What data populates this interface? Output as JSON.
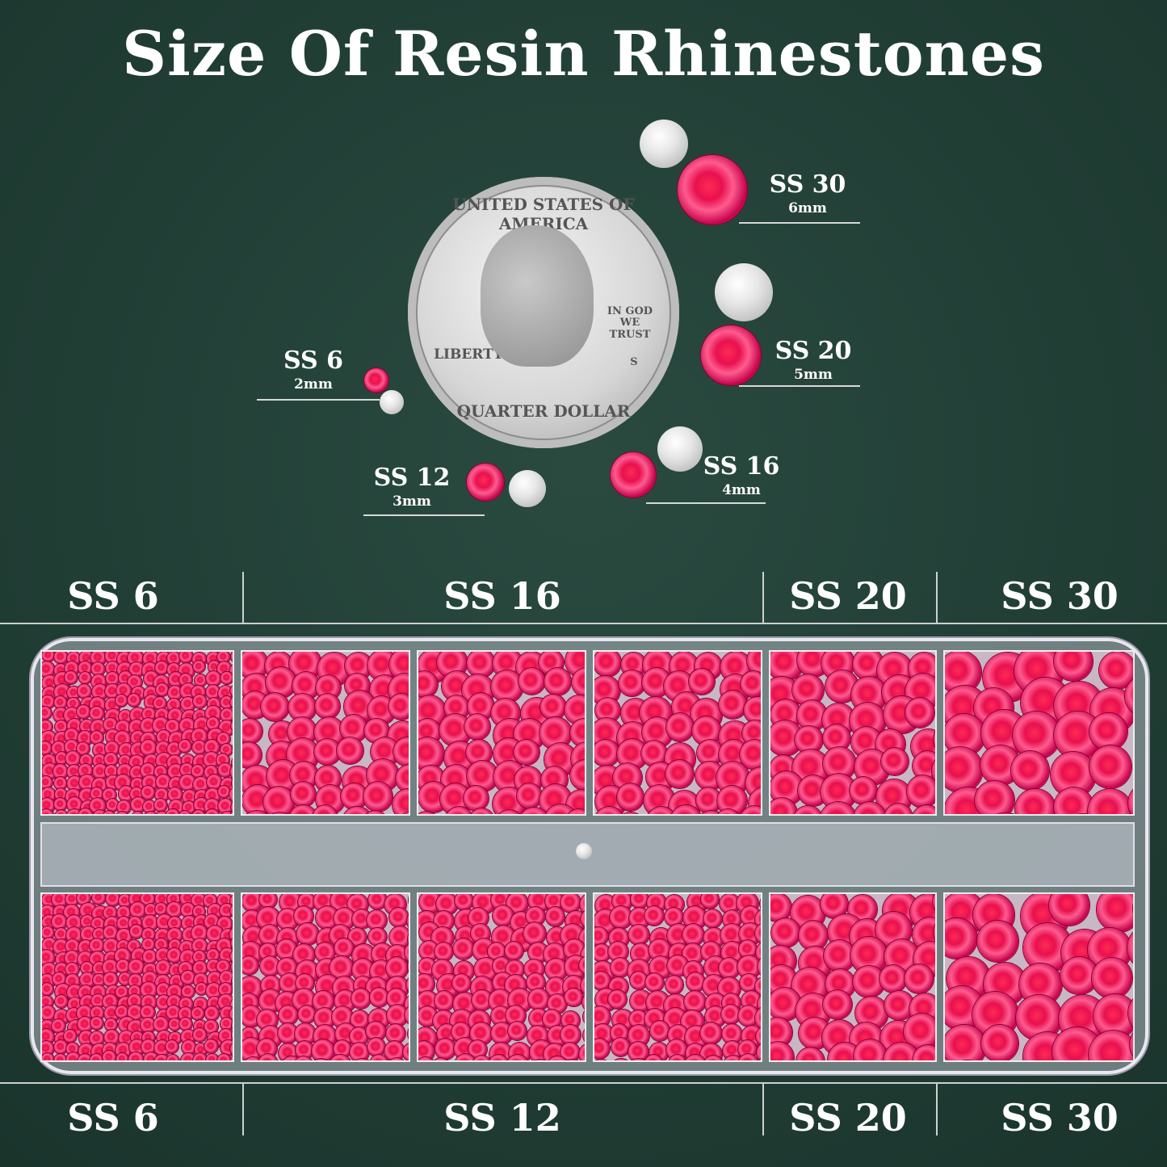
{
  "title": "Size Of Resin Rhinestones",
  "colors": {
    "background": "#203d34",
    "stone": "#e8104f",
    "text": "#ffffff"
  },
  "coin": {
    "top_text": "UNITED STATES OF AMERICA",
    "motto": "IN GOD WE TRUST",
    "left_text": "LIBERTY",
    "bottom_text": "QUARTER DOLLAR",
    "mint_mark": "S"
  },
  "size_callouts": [
    {
      "size": "SS 30",
      "mm": "6mm"
    },
    {
      "size": "SS 20",
      "mm": "5mm"
    },
    {
      "size": "SS 16",
      "mm": "4mm"
    },
    {
      "size": "SS 12",
      "mm": "3mm"
    },
    {
      "size": "SS 6",
      "mm": "2mm"
    }
  ],
  "tray": {
    "top_headers": [
      "SS 6",
      "SS 16",
      "SS 20",
      "SS 30"
    ],
    "bottom_headers": [
      "SS 6",
      "SS 12",
      "SS 20",
      "SS 30"
    ]
  }
}
